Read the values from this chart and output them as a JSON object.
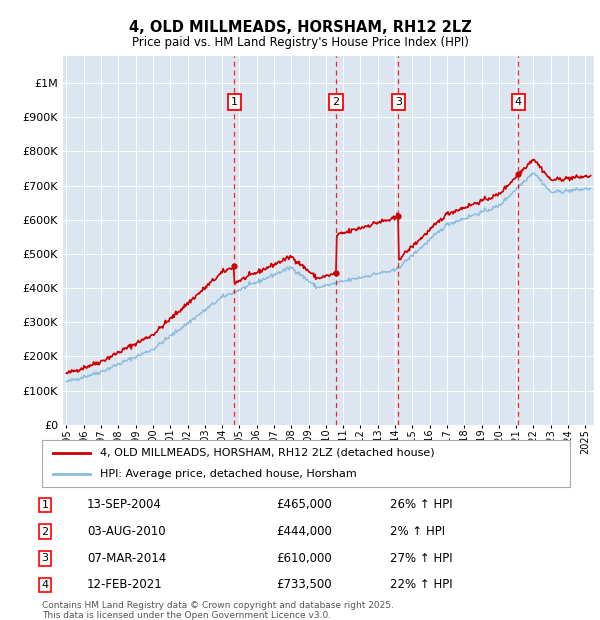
{
  "title": "4, OLD MILLMEADS, HORSHAM, RH12 2LZ",
  "subtitle": "Price paid vs. HM Land Registry's House Price Index (HPI)",
  "plot_bg_color": "#dce6f1",
  "yticks": [
    0,
    100000,
    200000,
    300000,
    400000,
    500000,
    600000,
    700000,
    800000,
    900000,
    1000000
  ],
  "ytick_labels": [
    "£0",
    "£100K",
    "£200K",
    "£300K",
    "£400K",
    "£500K",
    "£600K",
    "£700K",
    "£800K",
    "£900K",
    "£1M"
  ],
  "ylim": [
    0,
    1080000
  ],
  "xlim_start": 1994.8,
  "xlim_end": 2025.5,
  "transactions": [
    {
      "num": 1,
      "date_x": 2004.71,
      "price": 465000,
      "label": "13-SEP-2004",
      "pct": "26%"
    },
    {
      "num": 2,
      "date_x": 2010.58,
      "price": 444000,
      "label": "03-AUG-2010",
      "pct": "2%"
    },
    {
      "num": 3,
      "date_x": 2014.18,
      "price": 610000,
      "label": "07-MAR-2014",
      "pct": "27%"
    },
    {
      "num": 4,
      "date_x": 2021.12,
      "price": 733500,
      "label": "12-FEB-2021",
      "pct": "22%"
    }
  ],
  "legend_line1": "4, OLD MILLMEADS, HORSHAM, RH12 2LZ (detached house)",
  "legend_line2": "HPI: Average price, detached house, Horsham",
  "footer": "Contains HM Land Registry data © Crown copyright and database right 2025.\nThis data is licensed under the Open Government Licence v3.0.",
  "table_rows": [
    {
      "num": 1,
      "date": "13-SEP-2004",
      "price": "£465,000",
      "pct": "26% ↑ HPI"
    },
    {
      "num": 2,
      "date": "03-AUG-2010",
      "price": "£444,000",
      "pct": "2% ↑ HPI"
    },
    {
      "num": 3,
      "date": "07-MAR-2014",
      "price": "£610,000",
      "pct": "27% ↑ HPI"
    },
    {
      "num": 4,
      "date": "12-FEB-2021",
      "price": "£733,500",
      "pct": "22% ↑ HPI"
    }
  ],
  "red_color": "#cc0000",
  "blue_color": "#88bbdd"
}
